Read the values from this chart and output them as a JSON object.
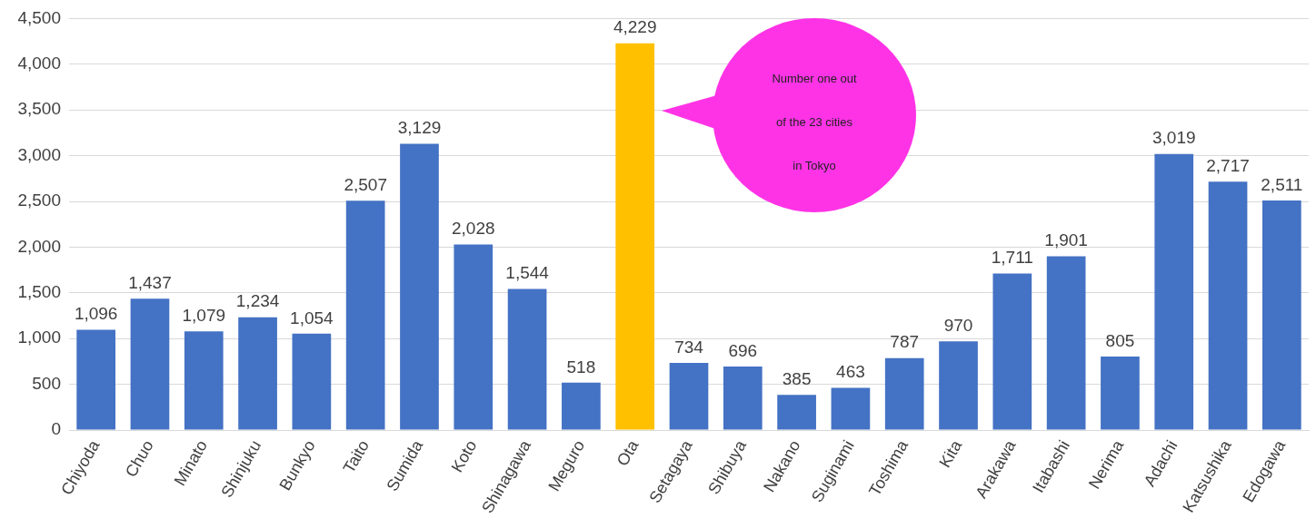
{
  "chart_data": {
    "type": "bar",
    "categories": [
      "Chiyoda",
      "Chuo",
      "Minato",
      "Shinjuku",
      "Bunkyo",
      "Taito",
      "Sumida",
      "Koto",
      "Shinagawa",
      "Meguro",
      "Ota",
      "Setagaya",
      "Shibuya",
      "Nakano",
      "Suginami",
      "Toshima",
      "Kita",
      "Arakawa",
      "Itabashi",
      "Nerima",
      "Adachi",
      "Katsushika",
      "Edogawa"
    ],
    "values": [
      1096,
      1437,
      1079,
      1234,
      1054,
      2507,
      3129,
      2028,
      1544,
      518,
      4229,
      734,
      696,
      385,
      463,
      787,
      970,
      1711,
      1901,
      805,
      3019,
      2717,
      2511
    ],
    "value_labels": [
      "1,096",
      "1,437",
      "1,079",
      "1,234",
      "1,054",
      "2,507",
      "3,129",
      "2,028",
      "1,544",
      "518",
      "4,229",
      "734",
      "696",
      "385",
      "463",
      "787",
      "970",
      "1,711",
      "1,901",
      "805",
      "3,019",
      "2,717",
      "2,511"
    ],
    "colors": [
      "#4472c4",
      "#4472c4",
      "#4472c4",
      "#4472c4",
      "#4472c4",
      "#4472c4",
      "#4472c4",
      "#4472c4",
      "#4472c4",
      "#4472c4",
      "#ffc000",
      "#4472c4",
      "#4472c4",
      "#4472c4",
      "#4472c4",
      "#4472c4",
      "#4472c4",
      "#4472c4",
      "#4472c4",
      "#4472c4",
      "#4472c4",
      "#4472c4",
      "#4472c4"
    ],
    "ylim": [
      0,
      4500
    ],
    "yticks": [
      0,
      500,
      {
        "value": 1000,
        "label": "1,000"
      },
      {
        "value": 1500,
        "label": "1,500"
      },
      {
        "value": 2000,
        "label": "2,000"
      },
      {
        "value": 2500,
        "label": "2,500"
      },
      {
        "value": 3000,
        "label": "3,000"
      },
      {
        "value": 3500,
        "label": "3,500"
      },
      {
        "value": 4000,
        "label": "4,000"
      },
      {
        "value": 4500,
        "label": "4,500"
      }
    ],
    "grid": "y",
    "annotations": [
      "Number one out of the 23 cities in Tokyo"
    ]
  }
}
